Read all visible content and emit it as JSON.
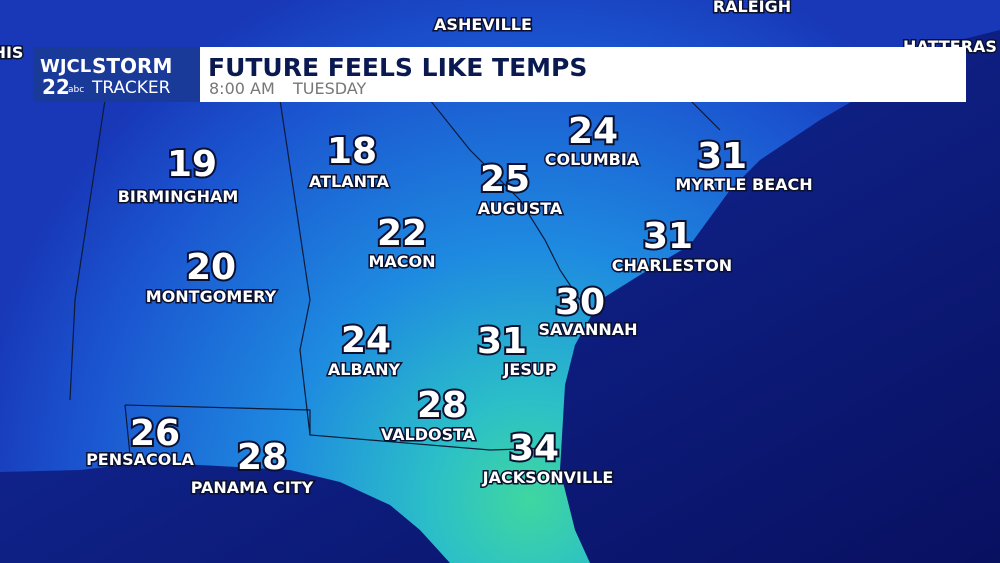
{
  "header": {
    "logo": {
      "station": "WJCL",
      "channel": "22",
      "network": "abc",
      "brand_top": "STORM",
      "brand_bottom": "TRACKER"
    },
    "title": "FUTURE FEELS LIKE TEMPS",
    "time": "8:00 AM",
    "day": "TUESDAY"
  },
  "map_labels": [
    "HIS",
    "ASHEVILLE",
    "RALEIGH",
    "HATTERAS"
  ],
  "cities": [
    {
      "name": "BIRMINGHAM",
      "temp": 19
    },
    {
      "name": "ATLANTA",
      "temp": 18
    },
    {
      "name": "COLUMBIA",
      "temp": 24
    },
    {
      "name": "MYRTLE BEACH",
      "temp": 31
    },
    {
      "name": "AUGUSTA",
      "temp": 25
    },
    {
      "name": "MACON",
      "temp": 22
    },
    {
      "name": "CHARLESTON",
      "temp": 31
    },
    {
      "name": "MONTGOMERY",
      "temp": 20
    },
    {
      "name": "SAVANNAH",
      "temp": 30
    },
    {
      "name": "ALBANY",
      "temp": 24
    },
    {
      "name": "JESUP",
      "temp": 31
    },
    {
      "name": "VALDOSTA",
      "temp": 28
    },
    {
      "name": "PENSACOLA",
      "temp": 26
    },
    {
      "name": "JACKSONVILLE",
      "temp": 34
    },
    {
      "name": "PANAMA CITY",
      "temp": 28
    }
  ]
}
